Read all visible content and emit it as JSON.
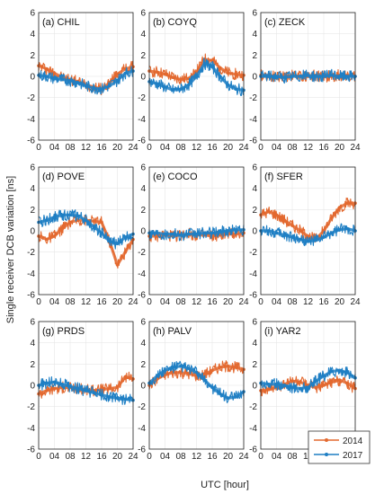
{
  "figure": {
    "ylabel": "Single receiver DCB variation [ns]",
    "xlabel": "UTC [hour]",
    "legend": [
      "2014",
      "2017"
    ],
    "colors": {
      "2014": "#e3692f",
      "2017": "#1f7fc4",
      "axis": "#222222",
      "grid": "#e6e6e6"
    }
  },
  "chart_data": [
    {
      "type": "line",
      "title": "(a) CHIL",
      "xlim": [
        0,
        24
      ],
      "ylim": [
        -6,
        6
      ],
      "xticks": [
        "0",
        "04",
        "08",
        "12",
        "16",
        "20",
        "24"
      ],
      "yticks": [
        "6",
        "4",
        "2",
        "0",
        "-2",
        "-4",
        "-6"
      ],
      "series": [
        {
          "name": "2014",
          "x": [
            0,
            2,
            4,
            6,
            8,
            10,
            12,
            14,
            16,
            18,
            20,
            22,
            24
          ],
          "y": [
            1.0,
            0.7,
            0.3,
            -0.1,
            -0.3,
            -0.5,
            -0.8,
            -1.0,
            -1.2,
            -0.6,
            0.2,
            0.7,
            0.9
          ]
        },
        {
          "name": "2017",
          "x": [
            0,
            2,
            4,
            6,
            8,
            10,
            12,
            14,
            16,
            18,
            20,
            22,
            24
          ],
          "y": [
            0.1,
            0.0,
            -0.2,
            -0.3,
            -0.4,
            -0.6,
            -0.9,
            -1.1,
            -1.2,
            -0.9,
            -0.4,
            0.3,
            0.5
          ]
        }
      ]
    },
    {
      "type": "line",
      "title": "(b) COYQ",
      "xlim": [
        0,
        24
      ],
      "ylim": [
        -6,
        6
      ],
      "xticks": [
        "0",
        "04",
        "08",
        "12",
        "16",
        "20",
        "24"
      ],
      "yticks": [
        "6",
        "4",
        "2",
        "0",
        "-2",
        "-4",
        "-6"
      ],
      "series": [
        {
          "name": "2014",
          "x": [
            0,
            2,
            4,
            6,
            8,
            10,
            12,
            14,
            16,
            18,
            20,
            22,
            24
          ],
          "y": [
            0.5,
            0.4,
            0.2,
            -0.1,
            -0.3,
            -0.2,
            0.4,
            1.6,
            1.5,
            0.8,
            0.3,
            0.2,
            0.1
          ]
        },
        {
          "name": "2017",
          "x": [
            0,
            2,
            4,
            6,
            8,
            10,
            12,
            14,
            16,
            18,
            20,
            22,
            24
          ],
          "y": [
            -0.5,
            -0.7,
            -1.0,
            -1.3,
            -1.2,
            -0.8,
            0.0,
            1.2,
            0.9,
            0.0,
            -0.8,
            -1.2,
            -1.3
          ]
        }
      ]
    },
    {
      "type": "line",
      "title": "(c) ZECK",
      "xlim": [
        0,
        24
      ],
      "ylim": [
        -6,
        6
      ],
      "xticks": [
        "0",
        "04",
        "08",
        "12",
        "16",
        "20",
        "24"
      ],
      "yticks": [
        "6",
        "4",
        "2",
        "0",
        "-2",
        "-4",
        "-6"
      ],
      "series": [
        {
          "name": "2014",
          "x": [
            0,
            2,
            4,
            6,
            8,
            10,
            12,
            14,
            16,
            18,
            20,
            22,
            24
          ],
          "y": [
            0.1,
            0.1,
            0.0,
            0.0,
            0.1,
            0.0,
            0.0,
            0.1,
            0.0,
            0.0,
            0.1,
            0.1,
            0.0
          ]
        },
        {
          "name": "2017",
          "x": [
            0,
            2,
            4,
            6,
            8,
            10,
            12,
            14,
            16,
            18,
            20,
            22,
            24
          ],
          "y": [
            0.0,
            0.0,
            0.0,
            -0.1,
            0.0,
            0.0,
            0.1,
            0.0,
            0.0,
            0.1,
            0.0,
            0.0,
            0.0
          ]
        }
      ]
    },
    {
      "type": "line",
      "title": "(d) POVE",
      "xlim": [
        0,
        24
      ],
      "ylim": [
        -6,
        6
      ],
      "xticks": [
        "0",
        "04",
        "08",
        "12",
        "16",
        "20",
        "24"
      ],
      "yticks": [
        "6",
        "4",
        "2",
        "0",
        "-2",
        "-4",
        "-6"
      ],
      "series": [
        {
          "name": "2014",
          "x": [
            0,
            2,
            4,
            6,
            8,
            10,
            12,
            14,
            16,
            18,
            20,
            22,
            24
          ],
          "y": [
            -0.5,
            -0.8,
            -0.5,
            0.2,
            0.8,
            1.0,
            1.0,
            0.9,
            0.8,
            -1.0,
            -3.2,
            -2.0,
            -0.8
          ]
        },
        {
          "name": "2017",
          "x": [
            0,
            2,
            4,
            6,
            8,
            10,
            12,
            14,
            16,
            18,
            20,
            22,
            24
          ],
          "y": [
            0.8,
            1.0,
            1.3,
            1.5,
            1.5,
            1.4,
            1.0,
            0.4,
            -0.2,
            -1.0,
            -1.2,
            -0.6,
            -0.3
          ]
        }
      ]
    },
    {
      "type": "line",
      "title": "(e) COCO",
      "xlim": [
        0,
        24
      ],
      "ylim": [
        -6,
        6
      ],
      "xticks": [
        "0",
        "04",
        "08",
        "12",
        "16",
        "20",
        "24"
      ],
      "yticks": [
        "6",
        "4",
        "2",
        "0",
        "-2",
        "-4",
        "-6"
      ],
      "series": [
        {
          "name": "2014",
          "x": [
            0,
            2,
            4,
            6,
            8,
            10,
            12,
            14,
            16,
            18,
            20,
            22,
            24
          ],
          "y": [
            -0.5,
            -0.5,
            -0.4,
            -0.5,
            -0.4,
            -0.3,
            -0.4,
            -0.4,
            -0.5,
            -0.4,
            -0.3,
            -0.3,
            -0.2
          ]
        },
        {
          "name": "2017",
          "x": [
            0,
            2,
            4,
            6,
            8,
            10,
            12,
            14,
            16,
            18,
            20,
            22,
            24
          ],
          "y": [
            -0.2,
            -0.2,
            -0.3,
            -0.3,
            -0.4,
            -0.3,
            -0.3,
            -0.2,
            -0.2,
            -0.1,
            0.0,
            0.1,
            0.1
          ]
        }
      ]
    },
    {
      "type": "line",
      "title": "(f) SFER",
      "xlim": [
        0,
        24
      ],
      "ylim": [
        -6,
        6
      ],
      "xticks": [
        "0",
        "04",
        "08",
        "12",
        "16",
        "20",
        "24"
      ],
      "yticks": [
        "6",
        "4",
        "2",
        "0",
        "-2",
        "-4",
        "-6"
      ],
      "series": [
        {
          "name": "2014",
          "x": [
            0,
            2,
            4,
            6,
            8,
            10,
            12,
            14,
            16,
            18,
            20,
            22,
            24
          ],
          "y": [
            1.5,
            1.8,
            1.5,
            1.0,
            0.5,
            0.0,
            -0.5,
            -0.8,
            0.0,
            1.2,
            2.2,
            2.6,
            2.6
          ]
        },
        {
          "name": "2017",
          "x": [
            0,
            2,
            4,
            6,
            8,
            10,
            12,
            14,
            16,
            18,
            20,
            22,
            24
          ],
          "y": [
            0.0,
            0.0,
            -0.2,
            -0.4,
            -0.6,
            -0.8,
            -1.0,
            -0.9,
            -0.6,
            -0.2,
            0.1,
            0.2,
            0.0
          ]
        }
      ]
    },
    {
      "type": "line",
      "title": "(g) PRDS",
      "xlim": [
        0,
        24
      ],
      "ylim": [
        -6,
        6
      ],
      "xticks": [
        "0",
        "04",
        "08",
        "12",
        "16",
        "20",
        "24"
      ],
      "yticks": [
        "6",
        "4",
        "2",
        "0",
        "-2",
        "-4",
        "-6"
      ],
      "series": [
        {
          "name": "2014",
          "x": [
            0,
            2,
            4,
            6,
            8,
            10,
            12,
            14,
            16,
            18,
            20,
            22,
            24
          ],
          "y": [
            -0.8,
            -0.5,
            -0.3,
            -0.2,
            -0.2,
            -0.3,
            -0.4,
            -0.5,
            -0.4,
            -0.3,
            -0.2,
            0.8,
            0.6
          ]
        },
        {
          "name": "2017",
          "x": [
            0,
            2,
            4,
            6,
            8,
            10,
            12,
            14,
            16,
            18,
            20,
            22,
            24
          ],
          "y": [
            0.0,
            0.2,
            0.3,
            0.1,
            -0.1,
            -0.3,
            -0.5,
            -0.7,
            -0.9,
            -1.1,
            -1.2,
            -1.3,
            -1.4
          ]
        }
      ]
    },
    {
      "type": "line",
      "title": "(h) PALV",
      "xlim": [
        0,
        24
      ],
      "ylim": [
        -6,
        6
      ],
      "xticks": [
        "0",
        "04",
        "08",
        "12",
        "16",
        "20",
        "24"
      ],
      "yticks": [
        "6",
        "4",
        "2",
        "0",
        "-2",
        "-4",
        "-6"
      ],
      "series": [
        {
          "name": "2014",
          "x": [
            0,
            2,
            4,
            6,
            8,
            10,
            12,
            14,
            16,
            18,
            20,
            22,
            24
          ],
          "y": [
            0.0,
            0.6,
            1.0,
            1.2,
            1.2,
            1.1,
            0.9,
            1.0,
            1.4,
            1.7,
            1.8,
            1.7,
            1.5
          ]
        },
        {
          "name": "2017",
          "x": [
            0,
            2,
            4,
            6,
            8,
            10,
            12,
            14,
            16,
            18,
            20,
            22,
            24
          ],
          "y": [
            0.2,
            0.9,
            1.4,
            1.7,
            1.8,
            1.6,
            1.2,
            0.5,
            -0.2,
            -0.8,
            -1.2,
            -1.1,
            -0.6
          ]
        }
      ]
    },
    {
      "type": "line",
      "title": "(i) YAR2",
      "xlim": [
        0,
        24
      ],
      "ylim": [
        -6,
        6
      ],
      "xticks": [
        "0",
        "04",
        "08",
        "12",
        "16",
        "20",
        "24"
      ],
      "yticks": [
        "6",
        "4",
        "2",
        "0",
        "-2",
        "-4",
        "-6"
      ],
      "series": [
        {
          "name": "2014",
          "x": [
            0,
            2,
            4,
            6,
            8,
            10,
            12,
            14,
            16,
            18,
            20,
            22,
            24
          ],
          "y": [
            -0.5,
            -0.4,
            -0.2,
            0.1,
            0.4,
            0.3,
            0.0,
            -0.2,
            0.0,
            0.3,
            0.5,
            0.2,
            -0.3
          ]
        },
        {
          "name": "2017",
          "x": [
            0,
            2,
            4,
            6,
            8,
            10,
            12,
            14,
            16,
            18,
            20,
            22,
            24
          ],
          "y": [
            0.2,
            0.1,
            0.1,
            0.0,
            -0.2,
            -0.3,
            -0.2,
            0.4,
            0.9,
            1.3,
            1.4,
            1.2,
            0.7
          ]
        }
      ]
    }
  ]
}
